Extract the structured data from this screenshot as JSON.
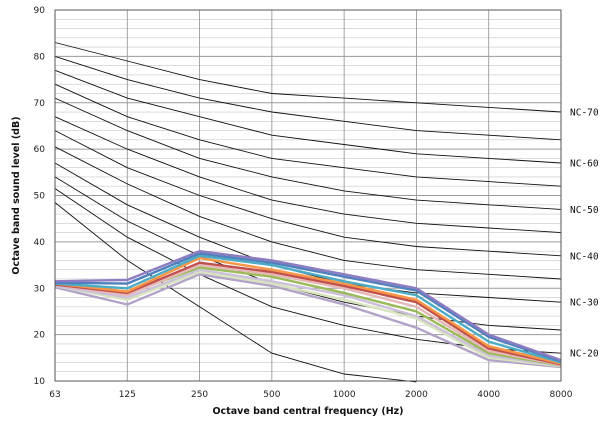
{
  "chart_data": {
    "type": "line",
    "title": "",
    "xlabel": "Octave band central frequency (Hz)",
    "ylabel": "Octave band sound level (dB)",
    "x": [
      "63",
      "125",
      "250",
      "500",
      "1000",
      "2000",
      "4000",
      "8000"
    ],
    "ylim": [
      10,
      90
    ],
    "yticks": [
      "10",
      "20",
      "30",
      "40",
      "50",
      "60",
      "70",
      "80",
      "90"
    ],
    "grid": true,
    "nc_curves": [
      {
        "label": "",
        "values": [
          48.5,
          36,
          26,
          16,
          11.5,
          9.8,
          null,
          null
        ]
      },
      {
        "label": "NC-20",
        "values": [
          51.5,
          41,
          33,
          26,
          22,
          19,
          17,
          16
        ]
      },
      {
        "label": "",
        "values": [
          54,
          44.5,
          37,
          31,
          27,
          24,
          22,
          21
        ]
      },
      {
        "label": "NC-30",
        "values": [
          57,
          48,
          41,
          35,
          31,
          29,
          28,
          27
        ]
      },
      {
        "label": "",
        "values": [
          60.5,
          52.5,
          45.5,
          40,
          36,
          34,
          33,
          32
        ]
      },
      {
        "label": "NC-40",
        "values": [
          64,
          56,
          50,
          45,
          41,
          39,
          38,
          37
        ]
      },
      {
        "label": "",
        "values": [
          67,
          60,
          54,
          49,
          46,
          44,
          43,
          42
        ]
      },
      {
        "label": "NC-50",
        "values": [
          71,
          64,
          58,
          54,
          51,
          49,
          48,
          47
        ]
      },
      {
        "label": "",
        "values": [
          74,
          67,
          62,
          58,
          56,
          54,
          53,
          52
        ]
      },
      {
        "label": "NC-60",
        "values": [
          77,
          71,
          67,
          63,
          61,
          59,
          58,
          57
        ]
      },
      {
        "label": "",
        "values": [
          80,
          75,
          71,
          68,
          66,
          64,
          63,
          62
        ]
      },
      {
        "label": "NC-70",
        "values": [
          83,
          79,
          75,
          72,
          71,
          70,
          69,
          68
        ]
      }
    ],
    "series": [
      {
        "color": "#8e7cc3",
        "values": [
          31.5,
          31.8,
          38,
          36,
          33,
          30,
          20,
          14.5
        ]
      },
      {
        "color": "#4f81bd",
        "values": [
          31.2,
          31.0,
          37.5,
          35.5,
          32.5,
          29.5,
          19.5,
          14.3
        ]
      },
      {
        "color": "#4bacc6",
        "values": [
          31.0,
          30.0,
          37.0,
          35.0,
          31.5,
          28.5,
          18.5,
          14.0
        ]
      },
      {
        "color": "#f79646",
        "values": [
          31.0,
          29.3,
          36.5,
          34.0,
          31.0,
          27.5,
          17.5,
          13.8
        ]
      },
      {
        "color": "#c0504d",
        "values": [
          30.8,
          29.0,
          35.5,
          33.5,
          30.5,
          27.0,
          17.0,
          13.6
        ]
      },
      {
        "color": "#e6b9b8",
        "values": [
          30.8,
          28.5,
          35.0,
          33.0,
          30.0,
          26.0,
          16.5,
          13.5
        ]
      },
      {
        "color": "#9bbb59",
        "values": [
          31.0,
          28.8,
          34.5,
          32.5,
          29.0,
          25.0,
          16.0,
          13.4
        ]
      },
      {
        "color": "#ccc0da",
        "values": [
          30.5,
          28.0,
          34.0,
          31.5,
          28.5,
          24.0,
          15.5,
          13.3
        ]
      },
      {
        "color": "#d7e4bd",
        "values": [
          30.5,
          27.5,
          33.5,
          31.0,
          27.5,
          23.5,
          15.0,
          13.2
        ]
      },
      {
        "color": "#b3a2c7",
        "values": [
          30.2,
          26.5,
          33.0,
          30.5,
          26.5,
          21.5,
          14.5,
          13.0
        ]
      }
    ]
  }
}
